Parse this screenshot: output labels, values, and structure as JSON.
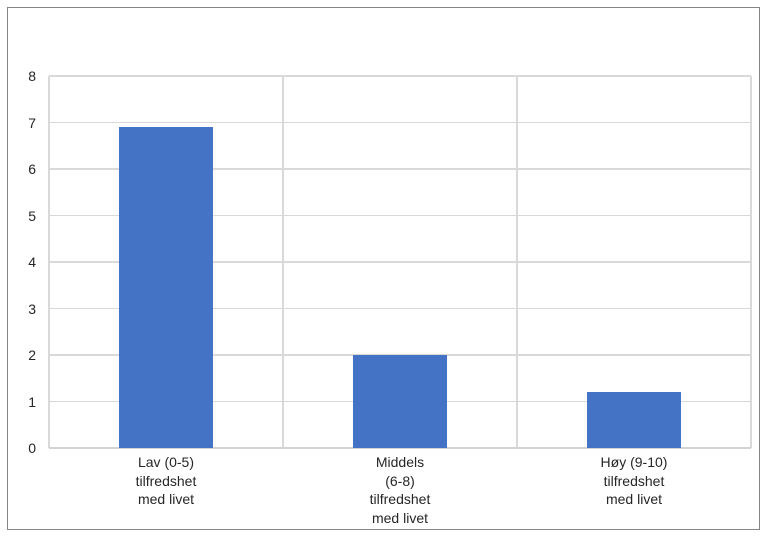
{
  "chart_data": {
    "type": "bar",
    "title": "",
    "xlabel": "",
    "ylabel": "",
    "categories": [
      "Lav (0-5)\ntilfredshet\nmed livet",
      "Middels\n(6-8)\ntilfredshet\nmed livet",
      "Høy (9-10)\ntilfredshet\nmed livet"
    ],
    "values": [
      6.9,
      2,
      1.2
    ],
    "ylim": [
      0,
      8
    ],
    "yticks": [
      0,
      1,
      2,
      3,
      4,
      5,
      6,
      7,
      8
    ],
    "grid": true,
    "vertical_category_gridlines": true,
    "legend": false,
    "colors": {
      "bar": "#4472C4",
      "gridline": "#D9D9D9",
      "axis_line": "#D3D3D3",
      "frame_border": "#858585",
      "text": "#262626",
      "background": "#FFFFFF"
    }
  }
}
